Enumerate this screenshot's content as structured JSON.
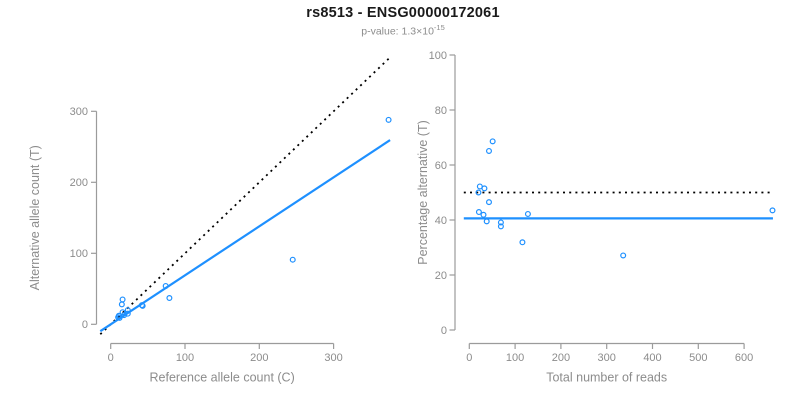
{
  "header": {
    "title": "rs8513 - ENSG00000172061",
    "pvalue_label": "p-value: 1.3×10",
    "pvalue_exponent": "-15"
  },
  "colors": {
    "point_blue": "#1E90FF",
    "line_black": "#000000",
    "axis_gray": "#9b9b9b",
    "text_gray": "#8c8c8c",
    "title_black": "#1a1a1a"
  },
  "chart_data": [
    {
      "id": "allele-counts",
      "type": "scatter",
      "title": "",
      "xlabel": "Reference allele count (C)",
      "ylabel": "Alternative allele count (T)",
      "xticks": [
        0,
        100,
        200,
        300
      ],
      "yticks": [
        0,
        100,
        200,
        300
      ],
      "xlim": [
        -14,
        376
      ],
      "ylim": [
        -10,
        300
      ],
      "grid": false,
      "points": [
        [
          10,
          10
        ],
        [
          11,
          12
        ],
        [
          16,
          17
        ],
        [
          15,
          28
        ],
        [
          16,
          35
        ],
        [
          23,
          20
        ],
        [
          12,
          9
        ],
        [
          18,
          13
        ],
        [
          23,
          15
        ],
        [
          42,
          27
        ],
        [
          43,
          26
        ],
        [
          74,
          54
        ],
        [
          79,
          37
        ],
        [
          245,
          91
        ],
        [
          374,
          288
        ]
      ],
      "lines": [
        {
          "name": "identity-line",
          "kind": "slope",
          "slope": 1,
          "intercept": 0,
          "style": "dotted",
          "color": "#000000"
        },
        {
          "name": "fit-line",
          "kind": "slope",
          "slope": 0.69,
          "intercept": 0,
          "style": "solid",
          "color": "#1E90FF"
        }
      ]
    },
    {
      "id": "percentage-vs-reads",
      "type": "scatter",
      "title": "",
      "xlabel": "Total number of reads",
      "ylabel": "Percentage alternative (T)",
      "xticks": [
        0,
        100,
        200,
        300,
        400,
        500,
        600
      ],
      "yticks": [
        0,
        20,
        40,
        60,
        80,
        100
      ],
      "xlim": [
        -12,
        663
      ],
      "ylim": [
        0,
        100
      ],
      "grid": false,
      "points": [
        [
          20,
          50
        ],
        [
          23,
          52.2
        ],
        [
          33,
          51.5
        ],
        [
          43,
          65.1
        ],
        [
          51,
          68.6
        ],
        [
          43,
          46.5
        ],
        [
          21,
          42.9
        ],
        [
          31,
          41.9
        ],
        [
          38,
          39.5
        ],
        [
          69,
          39.1
        ],
        [
          69,
          37.7
        ],
        [
          128,
          42.2
        ],
        [
          116,
          31.9
        ],
        [
          336,
          27.1
        ],
        [
          662,
          43.5
        ]
      ],
      "lines": [
        {
          "name": "expected-50-line",
          "kind": "horizontal",
          "y": 50,
          "style": "dotted",
          "color": "#000000"
        },
        {
          "name": "fit-line",
          "kind": "horizontal",
          "y": 40.6,
          "style": "solid",
          "color": "#1E90FF"
        }
      ]
    }
  ]
}
